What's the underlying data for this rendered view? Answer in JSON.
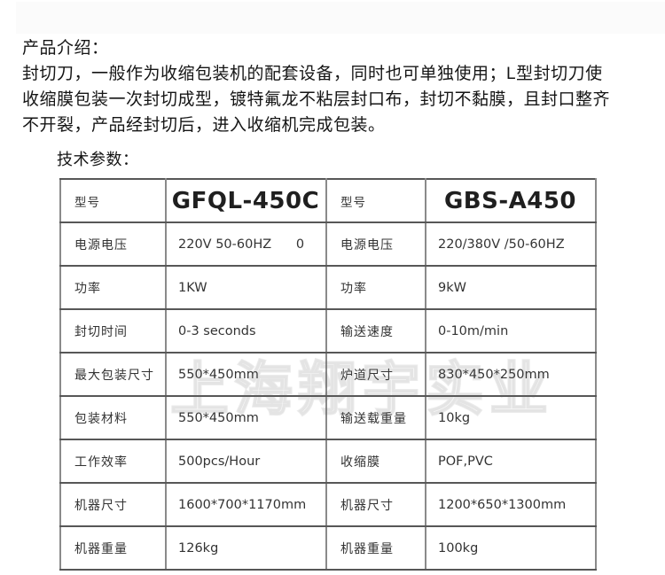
{
  "page": {
    "intro_heading": "产品介绍：",
    "intro_lines": [
      "封切刀，一般作为收缩包装机的配套设备，同时也可单独使用；L型封切刀使",
      "收缩膜包装一次封切成型，镀特氟龙不粘层封口布，封切不黏膜，且封口整齐",
      "不开裂，产品经封切后，进入收缩机完成包装。"
    ],
    "params_heading": "技术参数：",
    "watermark": "上海翔宇实业"
  },
  "colors": {
    "table_outer_border": "#4a4a4a",
    "table_inner_vertical": "#8a8a8a",
    "table_inner_horizontal": "#575757",
    "body_text": "#151515",
    "cell_text": "#333333"
  },
  "table": {
    "column_headers": [
      "型号",
      "GFQL-450C",
      "型号",
      "GBS-A450"
    ],
    "rows": [
      {
        "header": true,
        "l1": "型号",
        "v1": "GFQL-450C",
        "l2": "型号",
        "v2": "GBS-A450"
      },
      {
        "header": false,
        "l1": "电源电压",
        "v1": "220V 50-60HZ      0",
        "l2": "电源电压",
        "v2": "220/380V /50-60HZ"
      },
      {
        "header": false,
        "l1": "功率",
        "v1": "1KW",
        "l2": "功率",
        "v2": "9kW"
      },
      {
        "header": false,
        "l1": "封切时间",
        "v1": "0-3 seconds",
        "l2": "输送速度",
        "v2": "0-10m/min"
      },
      {
        "header": false,
        "l1": "最大包装尺寸",
        "v1": "550*450mm",
        "l2": "炉道尺寸",
        "v2": "830*450*250mm"
      },
      {
        "header": false,
        "l1": "包装材料",
        "v1": "550*450mm",
        "l2": "输送载重量",
        "v2": "10kg"
      },
      {
        "header": false,
        "l1": "工作效率",
        "v1": "500pcs/Hour",
        "l2": "收缩膜",
        "v2": "POF,PVC"
      },
      {
        "header": false,
        "l1": "机器尺寸",
        "v1": "1600*700*1170mm",
        "l2": "机器尺寸",
        "v2": "1200*650*1300mm"
      },
      {
        "header": false,
        "l1": "机器重量",
        "v1": "126kg",
        "l2": "机器重量",
        "v2": "100kg"
      }
    ]
  }
}
